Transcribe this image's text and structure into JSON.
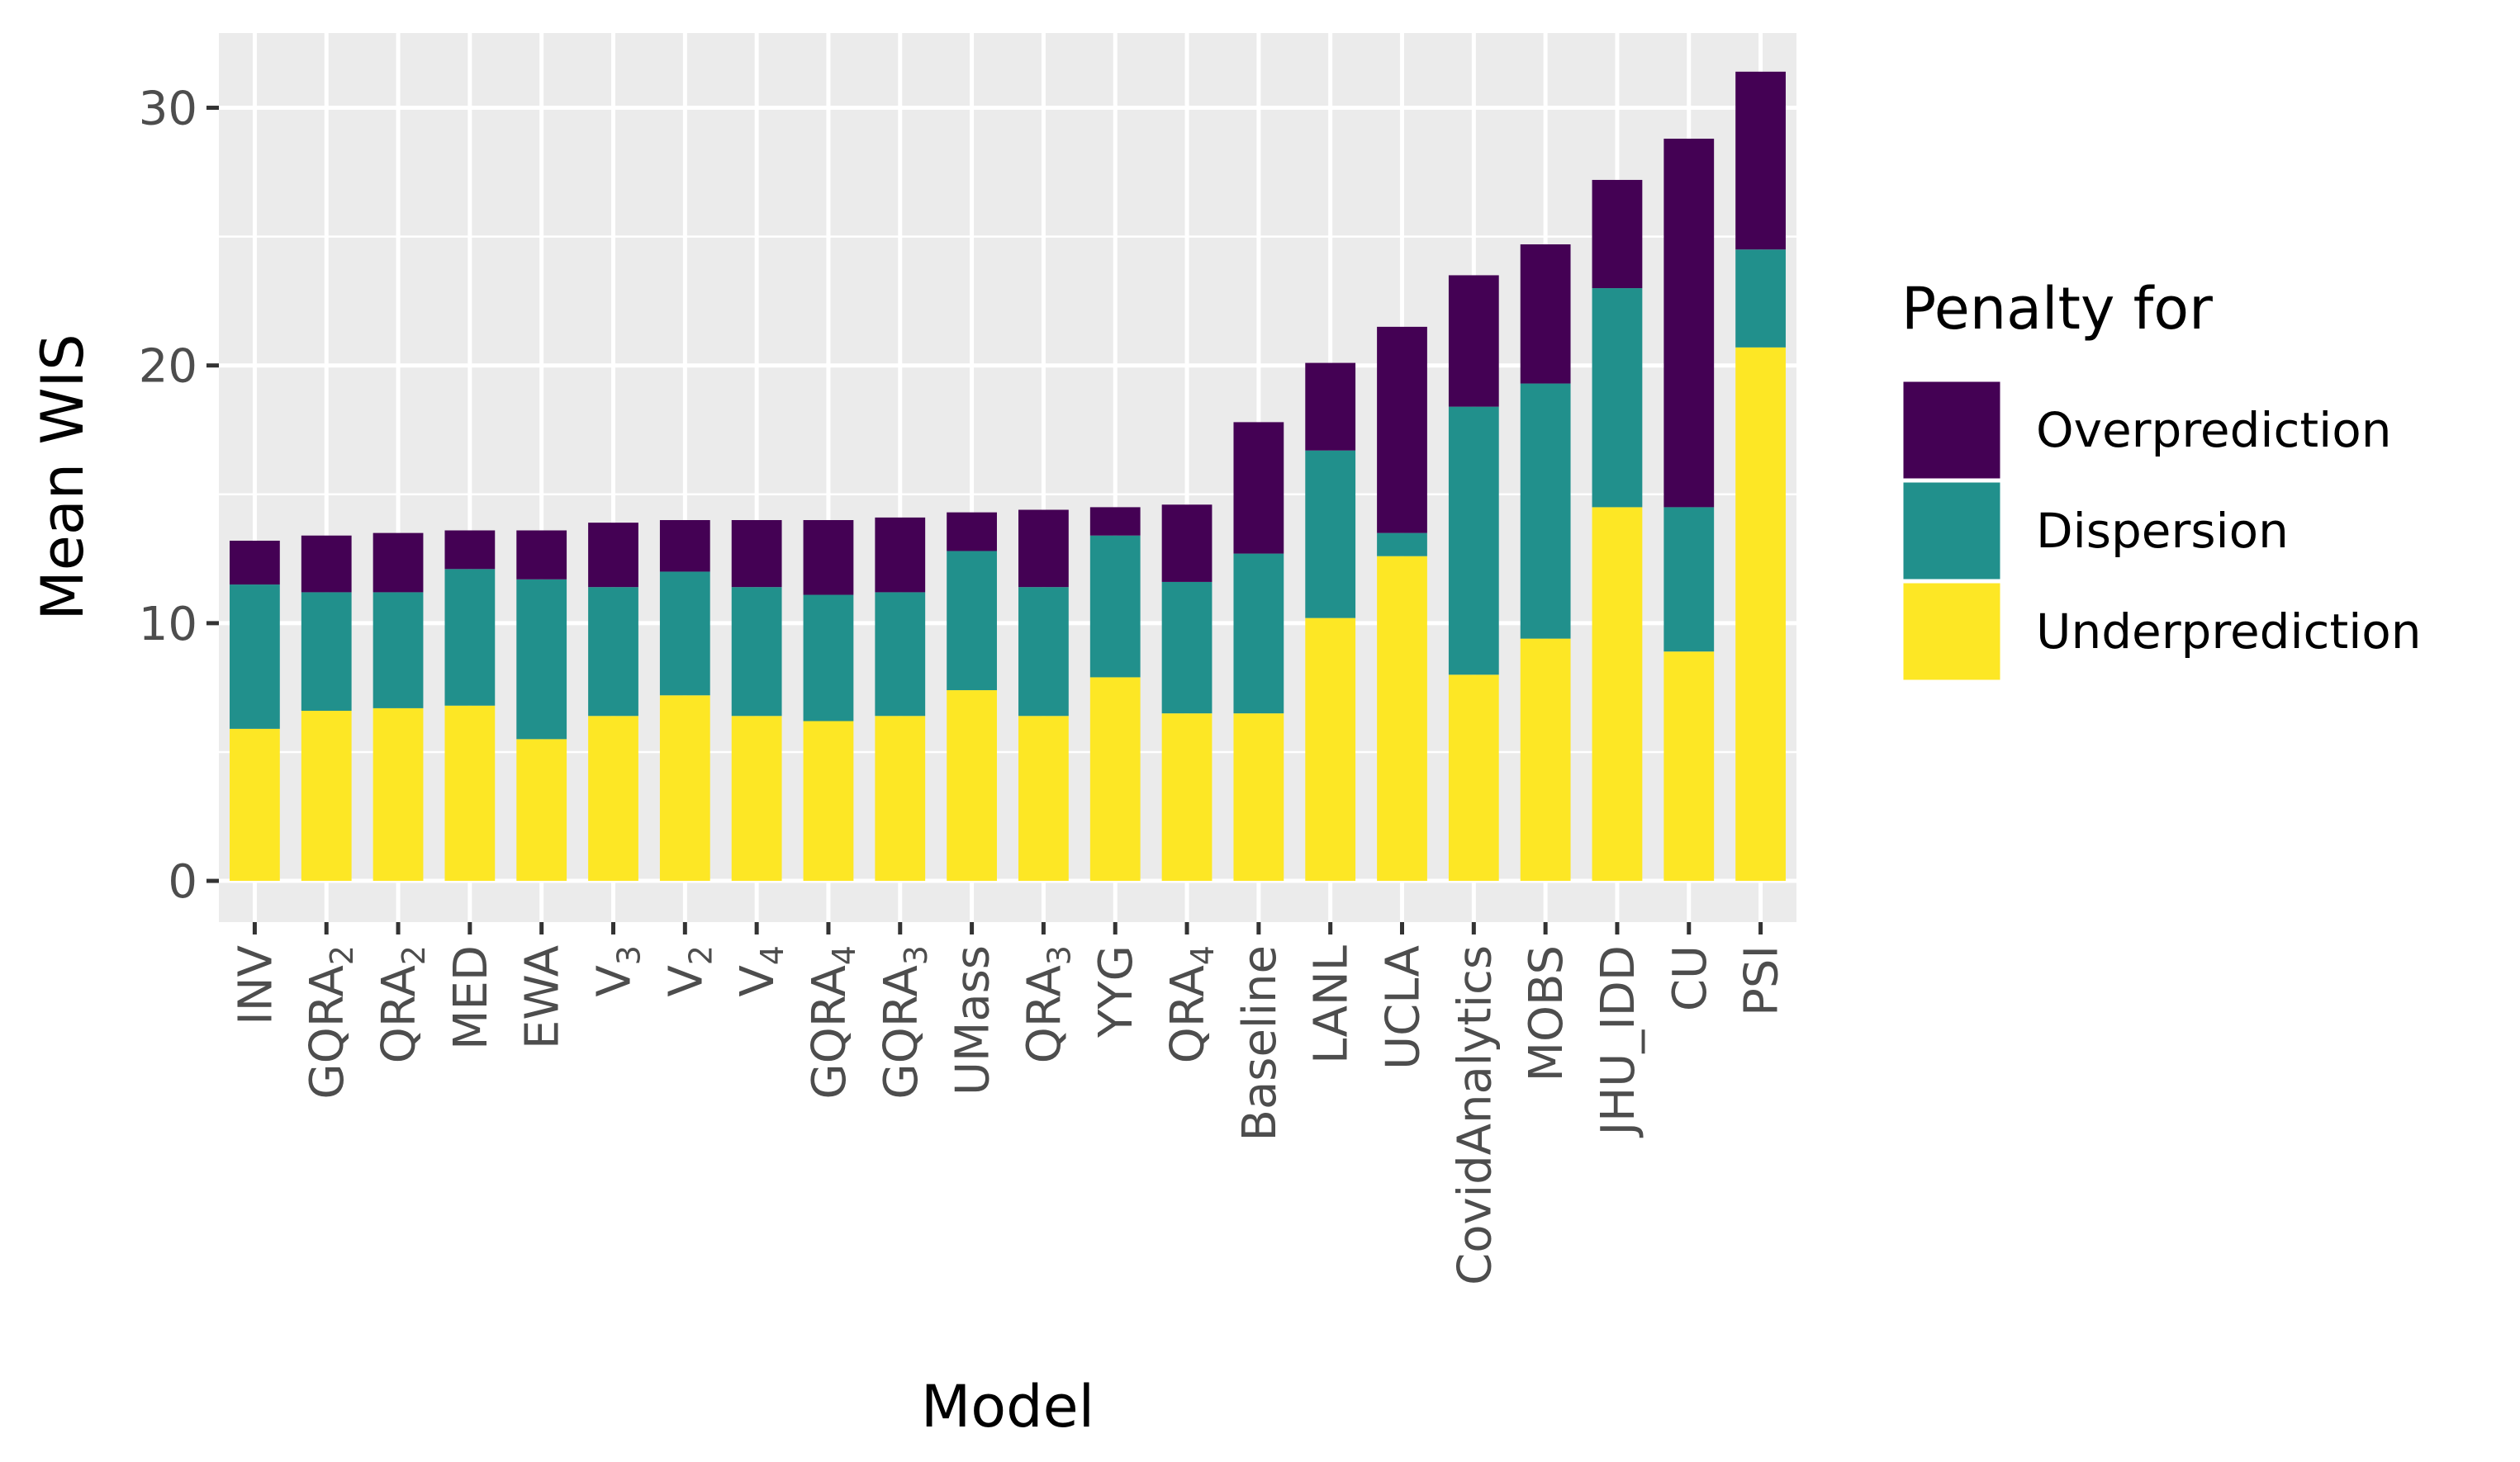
{
  "chart_data": {
    "type": "bar",
    "stacked": true,
    "xlabel": "Model",
    "ylabel": "Mean WIS",
    "ylim": [
      -1.6,
      32.9
    ],
    "yticks": [
      0,
      10,
      20,
      30
    ],
    "grid": true,
    "legend_position": "right",
    "legend_title": "Penalty for",
    "categories": [
      {
        "base": "INV",
        "sub": ""
      },
      {
        "base": "GQRA",
        "sub": "2"
      },
      {
        "base": "QRA",
        "sub": "2"
      },
      {
        "base": "MED",
        "sub": ""
      },
      {
        "base": "EWA",
        "sub": ""
      },
      {
        "base": "V",
        "sub": "3"
      },
      {
        "base": "V",
        "sub": "2"
      },
      {
        "base": "V",
        "sub": "4"
      },
      {
        "base": "GQRA",
        "sub": "4"
      },
      {
        "base": "GQRA",
        "sub": "3"
      },
      {
        "base": "UMass",
        "sub": ""
      },
      {
        "base": "QRA",
        "sub": "3"
      },
      {
        "base": "YYG",
        "sub": ""
      },
      {
        "base": "QRA",
        "sub": "4"
      },
      {
        "base": "Baseline",
        "sub": ""
      },
      {
        "base": "LANL",
        "sub": ""
      },
      {
        "base": "UCLA",
        "sub": ""
      },
      {
        "base": "CovidAnalytics",
        "sub": ""
      },
      {
        "base": "MOBS",
        "sub": ""
      },
      {
        "base": "JHU_IDD",
        "sub": ""
      },
      {
        "base": "CU",
        "sub": ""
      },
      {
        "base": "PSI",
        "sub": ""
      }
    ],
    "series": [
      {
        "name": "Underprediction",
        "color": "#FDE725",
        "values": [
          5.9,
          6.6,
          6.7,
          6.8,
          5.5,
          6.4,
          7.2,
          6.4,
          6.2,
          6.4,
          7.4,
          6.4,
          7.9,
          6.5,
          6.5,
          10.2,
          12.6,
          8.0,
          9.4,
          14.5,
          8.9,
          20.7
        ]
      },
      {
        "name": "Dispersion",
        "color": "#21908C",
        "values": [
          5.6,
          4.6,
          4.5,
          5.3,
          6.2,
          5.0,
          4.8,
          5.0,
          4.9,
          4.8,
          5.4,
          5.0,
          5.5,
          5.1,
          6.2,
          6.5,
          0.9,
          10.4,
          9.9,
          8.5,
          5.6,
          3.8
        ]
      },
      {
        "name": "Overprediction",
        "color": "#440154",
        "values": [
          1.7,
          2.2,
          2.3,
          1.5,
          1.9,
          2.5,
          2.0,
          2.6,
          2.9,
          2.9,
          1.5,
          3.0,
          1.1,
          3.0,
          5.1,
          3.4,
          8.0,
          5.1,
          5.4,
          4.2,
          14.3,
          6.9
        ]
      }
    ]
  }
}
